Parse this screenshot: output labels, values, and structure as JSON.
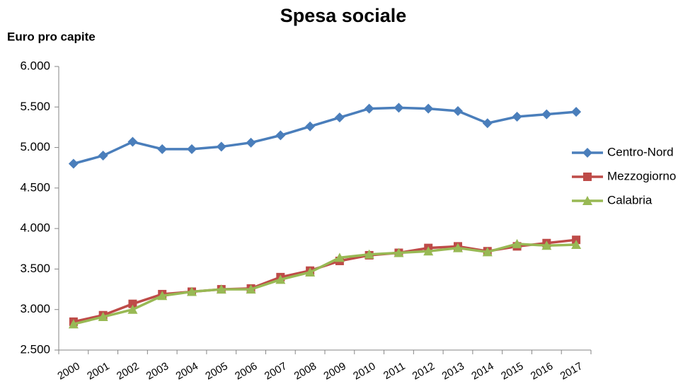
{
  "chart_data": {
    "type": "line",
    "title": "Spesa sociale",
    "y_label": "Euro pro capite",
    "categories": [
      "2000",
      "2001",
      "2002",
      "2003",
      "2004",
      "2005",
      "2006",
      "2007",
      "2008",
      "2009",
      "2010",
      "2011",
      "2012",
      "2013",
      "2014",
      "2015",
      "2016",
      "2017"
    ],
    "series": [
      {
        "name": "Centro-Nord",
        "color": "#4a7ebb",
        "marker": "diamond",
        "values": [
          4800,
          4900,
          5070,
          4980,
          4980,
          5010,
          5060,
          5150,
          5260,
          5370,
          5480,
          5490,
          5480,
          5450,
          5300,
          5380,
          5410,
          5440
        ]
      },
      {
        "name": "Mezzogiorno",
        "color": "#be4b48",
        "marker": "square",
        "values": [
          2850,
          2930,
          3070,
          3190,
          3220,
          3250,
          3260,
          3400,
          3480,
          3600,
          3670,
          3700,
          3760,
          3780,
          3720,
          3780,
          3820,
          3860
        ]
      },
      {
        "name": "Calabria",
        "color": "#98b954",
        "marker": "triangle",
        "values": [
          2820,
          2910,
          3000,
          3170,
          3220,
          3250,
          3250,
          3370,
          3460,
          3640,
          3680,
          3700,
          3720,
          3760,
          3710,
          3810,
          3790,
          3800
        ]
      }
    ],
    "ylim": [
      2500,
      6000
    ],
    "yticks": [
      {
        "value": 2500,
        "label": "2.500"
      },
      {
        "value": 3000,
        "label": "3.000"
      },
      {
        "value": 3500,
        "label": "3.500"
      },
      {
        "value": 4000,
        "label": "4.000"
      },
      {
        "value": 4500,
        "label": "4.500"
      },
      {
        "value": 5000,
        "label": "5.000"
      },
      {
        "value": 5500,
        "label": "5.500"
      },
      {
        "value": 6000,
        "label": "6.000"
      }
    ],
    "grid": false,
    "legend": "right"
  }
}
